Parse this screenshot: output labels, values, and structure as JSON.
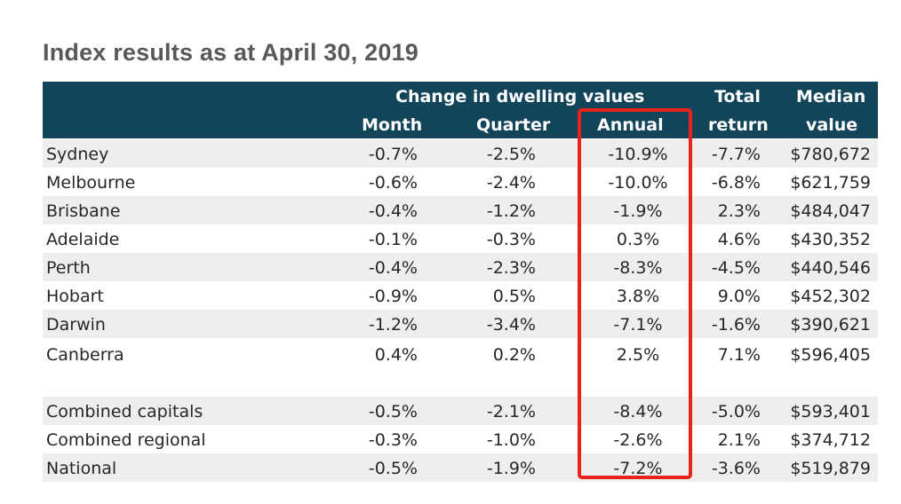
{
  "title": "Index results as at April 30, 2019",
  "header": {
    "group_label": "Change in dwelling values",
    "month": "Month",
    "quarter": "Quarter",
    "annual": "Annual",
    "total_line1": "Total",
    "total_line2": "return",
    "median_line1": "Median",
    "median_line2": "value"
  },
  "rows": [
    {
      "name": "Sydney",
      "month": "-0.7%",
      "quarter": "-2.5%",
      "annual": "-10.9%",
      "total": "-7.7%",
      "median": "$780,672"
    },
    {
      "name": "Melbourne",
      "month": "-0.6%",
      "quarter": "-2.4%",
      "annual": "-10.0%",
      "total": "-6.8%",
      "median": "$621,759"
    },
    {
      "name": "Brisbane",
      "month": "-0.4%",
      "quarter": "-1.2%",
      "annual": "-1.9%",
      "total": "2.3%",
      "median": "$484,047"
    },
    {
      "name": "Adelaide",
      "month": "-0.1%",
      "quarter": "-0.3%",
      "annual": "0.3%",
      "total": "4.6%",
      "median": "$430,352"
    },
    {
      "name": "Perth",
      "month": "-0.4%",
      "quarter": "-2.3%",
      "annual": "-8.3%",
      "total": "-4.5%",
      "median": "$440,546"
    },
    {
      "name": "Hobart",
      "month": "-0.9%",
      "quarter": "0.5%",
      "annual": "3.8%",
      "total": "9.0%",
      "median": "$452,302"
    },
    {
      "name": "Darwin",
      "month": "-1.2%",
      "quarter": "-3.4%",
      "annual": "-7.1%",
      "total": "-1.6%",
      "median": "$390,621"
    },
    {
      "name": "Canberra",
      "month": "0.4%",
      "quarter": "0.2%",
      "annual": "2.5%",
      "total": "7.1%",
      "median": "$596,405"
    },
    {
      "name": "Combined capitals",
      "month": "-0.5%",
      "quarter": "-2.1%",
      "annual": "-8.4%",
      "total": "-5.0%",
      "median": "$593,401"
    },
    {
      "name": "Combined regional",
      "month": "-0.3%",
      "quarter": "-1.0%",
      "annual": "-2.6%",
      "total": "2.1%",
      "median": "$374,712"
    },
    {
      "name": "National",
      "month": "-0.5%",
      "quarter": "-1.9%",
      "annual": "-7.2%",
      "total": "-3.6%",
      "median": "$519,879"
    }
  ],
  "colors": {
    "header_bg": "#12455a",
    "highlight_border": "#e8231b",
    "alt_row": "#eeeeee"
  }
}
